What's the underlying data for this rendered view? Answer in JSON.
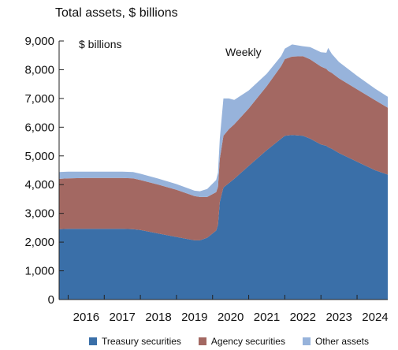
{
  "chart_data": {
    "type": "area",
    "stacked": true,
    "title": "Total assets, $ billions",
    "unit_label": "$ billions",
    "frequency_label": "Weekly",
    "xlabel": "",
    "ylabel": "",
    "xlim": [
      2015.75,
      2024.85
    ],
    "ylim": [
      0,
      9000
    ],
    "y_ticks": [
      0,
      1000,
      2000,
      3000,
      4000,
      5000,
      6000,
      7000,
      8000,
      9000
    ],
    "y_tick_labels": [
      "0",
      "1,000",
      "2,000",
      "3,000",
      "4,000",
      "5,000",
      "6,000",
      "7,000",
      "8,000",
      "9,000"
    ],
    "x_tick_labels": [
      "2016",
      "2017",
      "2018",
      "2019",
      "2020",
      "2021",
      "2022",
      "2023",
      "2024"
    ],
    "x": [
      2015.75,
      2016.0,
      2016.5,
      2017.0,
      2017.5,
      2017.8,
      2018.0,
      2018.5,
      2019.0,
      2019.5,
      2019.65,
      2019.85,
      2020.1,
      2020.15,
      2020.2,
      2020.3,
      2020.45,
      2020.6,
      2021.0,
      2021.5,
      2021.9,
      2022.0,
      2022.2,
      2022.5,
      2022.7,
      2023.0,
      2023.15,
      2023.2,
      2023.3,
      2023.5,
      2024.0,
      2024.5,
      2024.85
    ],
    "series": [
      {
        "name": "Treasury securities",
        "color": "#3a6fa8",
        "values": [
          2450,
          2460,
          2460,
          2460,
          2460,
          2450,
          2420,
          2300,
          2180,
          2060,
          2060,
          2150,
          2400,
          2600,
          3400,
          3900,
          4050,
          4200,
          4650,
          5200,
          5600,
          5700,
          5730,
          5700,
          5600,
          5400,
          5350,
          5300,
          5250,
          5100,
          4800,
          4500,
          4350
        ]
      },
      {
        "name": "Agency securities",
        "color": "#a36862",
        "values": [
          1750,
          1760,
          1770,
          1770,
          1770,
          1770,
          1740,
          1700,
          1640,
          1540,
          1510,
          1420,
          1340,
          1320,
          1500,
          1800,
          1880,
          1900,
          2000,
          2230,
          2530,
          2670,
          2730,
          2770,
          2760,
          2710,
          2680,
          2660,
          2640,
          2600,
          2520,
          2440,
          2330
        ]
      },
      {
        "name": "Other assets",
        "color": "#97b3db",
        "values": [
          240,
          230,
          220,
          220,
          220,
          220,
          220,
          210,
          200,
          190,
          200,
          280,
          420,
          500,
          700,
          1300,
          1070,
          850,
          630,
          430,
          350,
          360,
          420,
          350,
          430,
          500,
          560,
          800,
          660,
          570,
          470,
          400,
          380
        ]
      }
    ],
    "legend_position": "bottom",
    "grid": false
  }
}
